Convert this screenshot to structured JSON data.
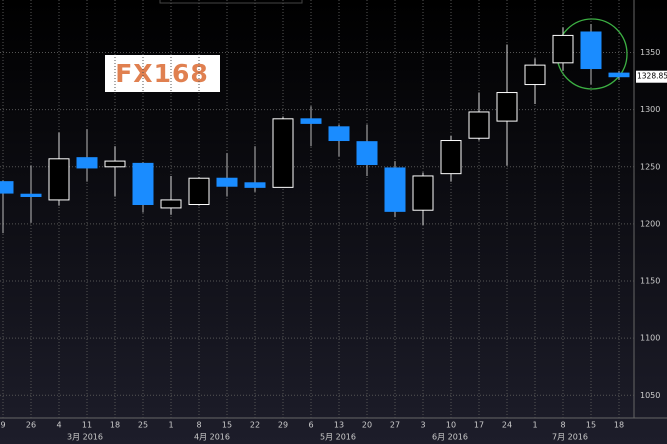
{
  "chart_data": {
    "type": "candlestick",
    "logo": "FX168",
    "categories": [
      "9",
      "26",
      "4",
      "11",
      "18",
      "25",
      "1",
      "8",
      "15",
      "22",
      "29",
      "6",
      "13",
      "20",
      "27",
      "3",
      "10",
      "17",
      "24",
      "1",
      "8",
      "15",
      "18"
    ],
    "months": [
      "3月 2016",
      "4月 2016",
      "5月 2016",
      "6月 2016",
      "7月 2016"
    ],
    "open": [
      1237,
      1226,
      1221,
      1258,
      1250,
      1253,
      1214,
      1217,
      1240,
      1236,
      1232,
      1292,
      1285,
      1272,
      1249,
      1212,
      1244,
      1275,
      1290,
      1322,
      1341,
      1368,
      1332
    ],
    "high": [
      1238,
      1251,
      1280,
      1283,
      1268,
      1254,
      1242,
      1241,
      1262,
      1268,
      1294,
      1303,
      1287,
      1287,
      1255,
      1245,
      1277,
      1315,
      1357,
      1345,
      1372,
      1375,
      1334
    ],
    "low": [
      1192,
      1201,
      1216,
      1237,
      1224,
      1210,
      1208,
      1216,
      1224,
      1228,
      1232,
      1268,
      1259,
      1242,
      1206,
      1199,
      1237,
      1273,
      1251,
      1305,
      1334,
      1322,
      1326
    ],
    "close": [
      1227,
      1224,
      1257,
      1249,
      1255,
      1217,
      1221,
      1240,
      1233,
      1232,
      1292,
      1288,
      1273,
      1252,
      1211,
      1242,
      1273,
      1298,
      1315,
      1339,
      1365,
      1336,
      1328.85
    ],
    "up_color": "#ffffff",
    "down_color": "#1a8cff",
    "grid": true,
    "ylim": [
      1024,
      1396
    ],
    "yticks": [
      1050,
      1100,
      1150,
      1200,
      1250,
      1300,
      1350
    ]
  }
}
